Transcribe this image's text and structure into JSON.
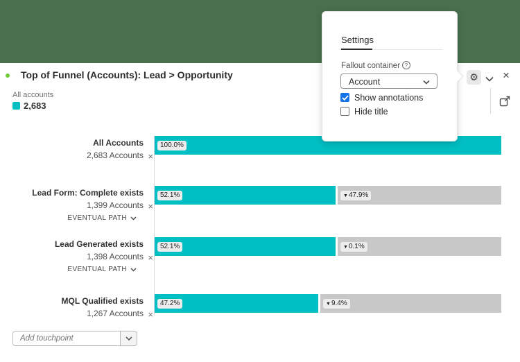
{
  "colors": {
    "backdrop_green": "#48704D",
    "bar_teal": "#00BFC3",
    "bar_gray": "#C8C8C8",
    "checkbox_blue": "#1473E6",
    "annotation_dot_green": "#6FCB36"
  },
  "header": {
    "title": "Top of Funnel (Accounts): Lead > Opportunity"
  },
  "legend": {
    "label": "All accounts",
    "value": "2,683"
  },
  "icons": {
    "gear_glyph": "⚙",
    "close_glyph": "×",
    "remove_glyph": "×",
    "help_glyph": "?",
    "fallout_arrow": "▼"
  },
  "popover": {
    "tab_label": "Settings",
    "fallout_container_label": "Fallout container",
    "container_value": "Account",
    "checkboxes": [
      {
        "label": "Show annotations",
        "checked": true
      },
      {
        "label": "Hide title",
        "checked": false
      }
    ]
  },
  "chart_data": {
    "type": "bar",
    "subtype": "fallout-funnel",
    "title": "Top of Funnel (Accounts): Lead > Opportunity",
    "container_total": 2683,
    "steps": [
      {
        "name": "All Accounts",
        "accounts_label": "2,683 Accounts",
        "accounts": 2683,
        "percent_label": "100.0%",
        "percent_value": 100.0,
        "fallout_label": null,
        "fallout_value": null,
        "path_label": null
      },
      {
        "name": "Lead Form: Complete exists",
        "accounts_label": "1,399 Accounts",
        "accounts": 1399,
        "percent_label": "52.1%",
        "percent_value": 52.1,
        "fallout_label": "47.9%",
        "fallout_value": 47.9,
        "path_label": "EVENTUAL PATH"
      },
      {
        "name": "Lead Generated exists",
        "accounts_label": "1,398 Accounts",
        "accounts": 1398,
        "percent_label": "52.1%",
        "percent_value": 52.1,
        "fallout_label": "0.1%",
        "fallout_value": 0.1,
        "path_label": "EVENTUAL PATH"
      },
      {
        "name": "MQL Qualified exists",
        "accounts_label": "1,267 Accounts",
        "accounts": 1267,
        "percent_label": "47.2%",
        "percent_value": 47.2,
        "fallout_label": "9.4%",
        "fallout_value": 9.4,
        "path_label": null
      }
    ]
  },
  "footer": {
    "add_touchpoint_placeholder": "Add touchpoint"
  }
}
